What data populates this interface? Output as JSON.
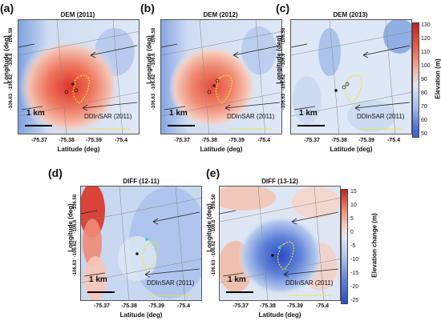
{
  "panels": [
    {
      "label": "(a)",
      "title": "DEM (2011)",
      "scalebar": "1 km",
      "inset": "DDInSAR (2011)",
      "yticks": [
        "-106.58",
        "-106.6",
        "-106.62",
        "-106.63"
      ],
      "xticks": [
        "-75.37",
        "-75.38",
        "-75.39",
        "-75.4"
      ],
      "ylabel": "Longitude (deg)",
      "xlabel": "Latitude (deg)"
    },
    {
      "label": "(b)",
      "title": "DEM (2012)",
      "scalebar": "1 km",
      "inset": "DDInSAR (2011)",
      "yticks": [
        "-106.58",
        "-106.6",
        "-106.62",
        "-106.63"
      ],
      "xticks": [
        "-75.37",
        "-75.38",
        "-75.39",
        "-75.4"
      ],
      "ylabel": "Longitude (deg)",
      "xlabel": "Latitude (deg)"
    },
    {
      "label": "(c)",
      "title": "DEM (2013)",
      "scalebar": "1 km",
      "inset": "DDInSAR (2011)",
      "yticks": [
        "-106.58",
        "-106.6",
        "-106.62",
        "-106.63"
      ],
      "xticks": [
        "-75.37",
        "-75.38",
        "-75.39",
        "-75.4"
      ],
      "ylabel": "Longitude (deg)",
      "xlabel": "Latitude (deg)"
    },
    {
      "label": "(d)",
      "title": "DIFF (12-11)",
      "scalebar": "1 km",
      "inset": "DDInSAR (2011)",
      "yticks": [
        "-106.58",
        "-106.6",
        "-106.62",
        "-106.63"
      ],
      "xticks": [
        "-75.37",
        "-75.38",
        "-75.39",
        "-75.4"
      ],
      "ylabel": "Longitude (deg)",
      "xlabel": "Latitude (deg)"
    },
    {
      "label": "(e)",
      "title": "DIFF (13-12)",
      "scalebar": "1 km",
      "inset": "DDInSAR (2011)",
      "yticks": [
        "-106.58",
        "-106.6",
        "-106.62",
        "-106.63"
      ],
      "xticks": [
        "-75.37",
        "-75.38",
        "-75.39",
        "-75.4"
      ],
      "ylabel": "Longitude (deg)",
      "xlabel": "Latitude (deg)"
    }
  ],
  "colorbar_elevation": {
    "label": "Elevation (m)",
    "ticks": [
      "130",
      "120",
      "110",
      "100",
      "90",
      "80",
      "70",
      "60",
      "50"
    ]
  },
  "colorbar_change": {
    "label": "Elevation change (m)",
    "ticks": [
      "15",
      "10",
      "5",
      "0",
      "-5",
      "-10",
      "-15",
      "-20",
      "-25"
    ]
  },
  "colors": {
    "colormap_low": "#3a5fcd",
    "colormap_mid": "#dfe8f5",
    "colormap_high": "#e03127",
    "outline": "#f2e21a",
    "marker_cyan": "#22d0f0"
  }
}
